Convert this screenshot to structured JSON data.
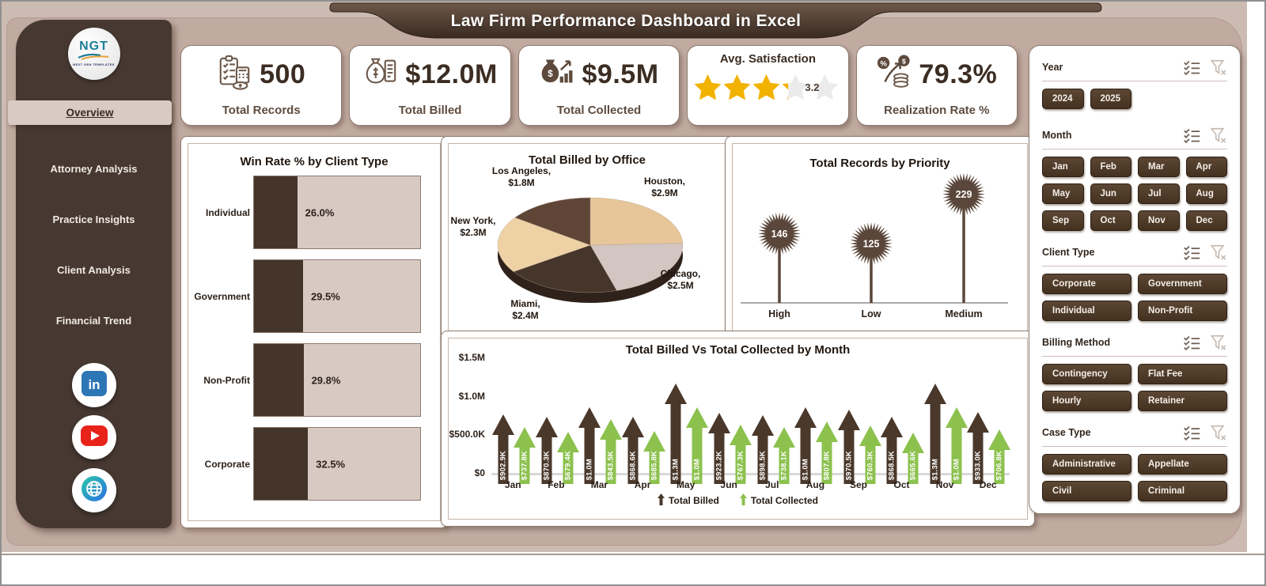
{
  "window": {
    "banner_title": "Law Firm Performance Dashboard in Excel"
  },
  "logo": {
    "text": "NGT",
    "subtext": "NEXT GEN TEMPLATES"
  },
  "sidebar": {
    "items": [
      {
        "label": "Overview",
        "active": true
      },
      {
        "label": "Attorney Analysis",
        "active": false
      },
      {
        "label": "Practice Insights",
        "active": false
      },
      {
        "label": "Client Analysis",
        "active": false
      },
      {
        "label": "Financial Trend",
        "active": false
      }
    ],
    "social": [
      {
        "name": "linkedin"
      },
      {
        "name": "youtube"
      },
      {
        "name": "website"
      }
    ]
  },
  "kpis": [
    {
      "icon": "records-icon",
      "value": "500",
      "label": "Total Records"
    },
    {
      "icon": "billed-icon",
      "value": "$12.0M",
      "label": "Total Billed"
    },
    {
      "icon": "collected-icon",
      "value": "$9.5M",
      "label": "Total Collected"
    },
    {
      "icon": "stars",
      "label": "Avg. Satisfaction",
      "rating": 3.2,
      "rating_text": "3.2",
      "stars_total": 5
    },
    {
      "icon": "realization-icon",
      "value": "79.3%",
      "label": "Realization Rate %"
    }
  ],
  "chart_data": [
    {
      "id": "win_rate_by_client_type",
      "type": "bar",
      "orientation": "horizontal",
      "title": "Win Rate % by Client Type",
      "categories": [
        "Individual",
        "Government",
        "Non-Profit",
        "Corporate"
      ],
      "values": [
        26.0,
        29.5,
        29.8,
        32.5
      ],
      "value_labels": [
        "26.0%",
        "29.5%",
        "29.8%",
        "32.5%"
      ],
      "xlim": [
        0,
        100
      ],
      "bar_color": "#44342a",
      "track_color": "#d8c9c3"
    },
    {
      "id": "total_billed_by_office",
      "type": "pie",
      "title": "Total Billed by Office",
      "labels": [
        "Houston",
        "Chicago",
        "Miami",
        "New York",
        "Los Angeles"
      ],
      "values": [
        2.9,
        2.5,
        2.4,
        2.3,
        1.8
      ],
      "value_labels": [
        "$2.9M",
        "$2.5M",
        "$2.4M",
        "$2.3M",
        "$1.8M"
      ],
      "colors": [
        "#e7c69a",
        "#d3c5c1",
        "#46352a",
        "#eed2a6",
        "#5f4536"
      ],
      "start_angle_deg": -90,
      "clockwise": true,
      "style": "3d"
    },
    {
      "id": "total_records_by_priority",
      "type": "lollipop",
      "title": "Total Records by Priority",
      "categories": [
        "High",
        "Low",
        "Medium"
      ],
      "values": [
        146,
        125,
        229
      ],
      "color": "#5a463a"
    },
    {
      "id": "billed_vs_collected_by_month",
      "type": "arrow-bar",
      "title": "Total Billed Vs Total Collected by Month",
      "categories": [
        "Jan",
        "Feb",
        "Mar",
        "Apr",
        "May",
        "Jun",
        "Jul",
        "Aug",
        "Sep",
        "Oct",
        "Nov",
        "Dec"
      ],
      "series": [
        {
          "name": "Total Billed",
          "color": "#4a382b",
          "values_millions": [
            0.9029,
            0.8703,
            1.0,
            0.8686,
            1.3,
            0.9232,
            0.8985,
            1.0,
            0.9705,
            0.8685,
            1.3,
            0.933
          ],
          "labels": [
            "$902.9K",
            "$870.3K",
            "$1.0M",
            "$868.6K",
            "$1.3M",
            "$923.2K",
            "$898.5K",
            "$1.0M",
            "$970.5K",
            "$868.5K",
            "$1.3M",
            "$933.0K"
          ]
        },
        {
          "name": "Total Collected",
          "color": "#8cc14e",
          "values_millions": [
            0.7378,
            0.6794,
            0.8435,
            0.6858,
            1.0,
            0.7673,
            0.7381,
            0.8078,
            0.7603,
            0.6656,
            1.0,
            0.7068
          ],
          "labels": [
            "$737.8K",
            "$679.4K",
            "$843.5K",
            "$685.8K",
            "$1.0M",
            "$767.3K",
            "$738.1K",
            "$807.8K",
            "$760.3K",
            "$665.6K",
            "$1.0M",
            "$706.8K"
          ]
        }
      ],
      "y_ticks": [
        "$1.5M",
        "$1.0M",
        "$500.0K",
        "$0"
      ],
      "ylim_millions": [
        0,
        1.5
      ],
      "legend_position": "bottom",
      "grid": false
    }
  ],
  "filters": {
    "sections": [
      {
        "label": "Year",
        "cols": 4,
        "options": [
          "2024",
          "2025"
        ]
      },
      {
        "label": "Month",
        "cols": 4,
        "options": [
          "Jan",
          "Feb",
          "Mar",
          "Apr",
          "May",
          "Jun",
          "Jul",
          "Aug",
          "Sep",
          "Oct",
          "Nov",
          "Dec"
        ]
      },
      {
        "label": "Client Type",
        "cols": 2,
        "options": [
          "Corporate",
          "Government",
          "Individual",
          "Non-Profit"
        ]
      },
      {
        "label": "Billing Method",
        "cols": 2,
        "options": [
          "Contingency",
          "Flat Fee",
          "Hourly",
          "Retainer"
        ]
      },
      {
        "label": "Case Type",
        "cols": 2,
        "options": [
          "Administrative",
          "Appellate",
          "Civil",
          "Criminal"
        ]
      }
    ]
  },
  "colors": {
    "banner_brown": "#4a382c",
    "sidebar_brown": "#473931",
    "dashboard_bg": "#c1aaa0",
    "outer_band": "#ccbbb3",
    "slicer_button": "#4e3a2b",
    "star_gold": "#f2b200",
    "star_empty": "#ebebeb",
    "collected_green": "#8cc14e",
    "billed_brown": "#4a382b"
  }
}
